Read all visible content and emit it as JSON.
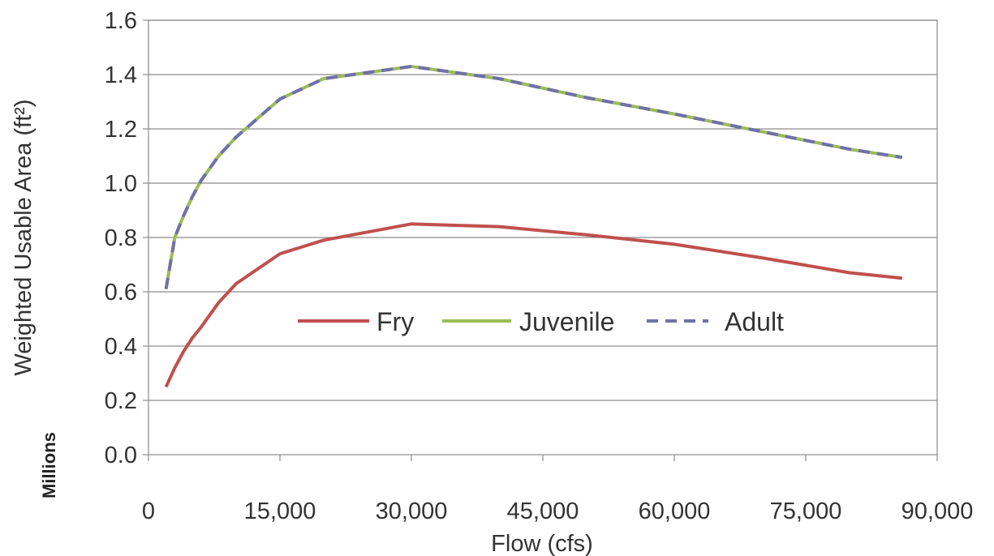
{
  "chart_data": {
    "type": "line",
    "xlabel": "Flow (cfs)",
    "ylabel": "Weighted Usable Area (ft²)",
    "y_units": "Millions",
    "xlim": [
      0,
      90000
    ],
    "ylim": [
      0.0,
      1.6
    ],
    "x_ticks": [
      0,
      15000,
      30000,
      45000,
      60000,
      75000,
      90000
    ],
    "x_tick_labels": [
      "0",
      "15,000",
      "30,000",
      "45,000",
      "60,000",
      "75,000",
      "90,000"
    ],
    "y_ticks": [
      0.0,
      0.2,
      0.4,
      0.6,
      0.8,
      1.0,
      1.2,
      1.4,
      1.6
    ],
    "y_tick_labels": [
      "0.0",
      "0.2",
      "0.4",
      "0.6",
      "0.8",
      "1.0",
      "1.2",
      "1.4",
      "1.6"
    ],
    "grid": "horizontal",
    "legend_position": "center",
    "series": [
      {
        "name": "Fry",
        "color": "#c0504d",
        "dash": false,
        "x": [
          2000,
          3000,
          4000,
          5000,
          6000,
          8000,
          10000,
          15000,
          20000,
          30000,
          40000,
          50000,
          60000,
          70000,
          80000,
          86000
        ],
        "y": [
          0.25,
          0.32,
          0.38,
          0.43,
          0.47,
          0.56,
          0.63,
          0.74,
          0.79,
          0.85,
          0.84,
          0.81,
          0.775,
          0.725,
          0.67,
          0.65
        ]
      },
      {
        "name": "Juvenile",
        "color": "#9bbb59",
        "dash": false,
        "x": [
          2000,
          3000,
          4000,
          5000,
          6000,
          8000,
          10000,
          15000,
          20000,
          30000,
          40000,
          50000,
          60000,
          70000,
          80000,
          86000
        ],
        "y": [
          0.61,
          0.8,
          0.88,
          0.95,
          1.01,
          1.1,
          1.17,
          1.31,
          1.385,
          1.43,
          1.385,
          1.315,
          1.255,
          1.19,
          1.125,
          1.095
        ]
      },
      {
        "name": "Adult",
        "color": "#7070a8",
        "dash": true,
        "x": [
          2000,
          3000,
          4000,
          5000,
          6000,
          8000,
          10000,
          15000,
          20000,
          30000,
          40000,
          50000,
          60000,
          70000,
          80000,
          86000
        ],
        "y": [
          0.61,
          0.8,
          0.88,
          0.95,
          1.01,
          1.1,
          1.17,
          1.31,
          1.385,
          1.43,
          1.385,
          1.315,
          1.255,
          1.19,
          1.125,
          1.095
        ]
      }
    ]
  }
}
